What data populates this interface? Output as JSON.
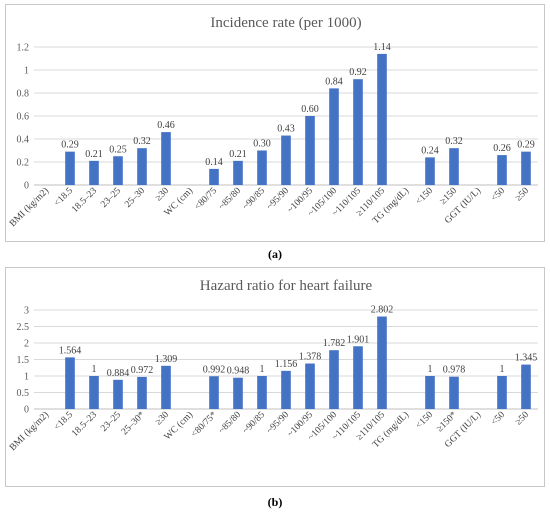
{
  "chart_data": [
    {
      "type": "bar",
      "title": "Incidence rate (per 1000)",
      "caption": "(a)",
      "ylim": [
        0,
        1.2
      ],
      "yticks": [
        "0",
        "0.2",
        "0.4",
        "0.6",
        "0.8",
        "1",
        "1.2"
      ],
      "grid": true,
      "bar_color": "#4472c4",
      "categories": [
        "BMI (kg/m2)",
        "<18.5",
        "18.5–23",
        "23–25",
        "25–30",
        "≥30",
        "WC (cm)",
        "<80/75",
        "~85/80",
        "~90/85",
        "~95/90",
        "~100/95",
        "~105/100",
        "~110/105",
        "≥110/105",
        "TG (mg/dL)",
        "<150",
        "≥150",
        "GGT (IU/L)",
        "<50",
        "≥50"
      ],
      "values": [
        null,
        0.29,
        0.21,
        0.25,
        0.32,
        0.46,
        null,
        0.14,
        0.21,
        0.3,
        0.43,
        0.6,
        0.84,
        0.92,
        1.14,
        null,
        0.24,
        0.32,
        null,
        0.26,
        0.29
      ],
      "labels": [
        "",
        "0.29",
        "0.21",
        "0.25",
        "0.32",
        "0.46",
        "",
        "0.14",
        "0.21",
        "0.30",
        "0.43",
        "0.60",
        "0.84",
        "0.92",
        "1.14",
        "",
        "0.24",
        "0.32",
        "",
        "0.26",
        "0.29"
      ]
    },
    {
      "type": "bar",
      "title": "Hazard ratio for heart failure",
      "caption": "(b)",
      "ylim": [
        0,
        3
      ],
      "yticks": [
        "0",
        "0.5",
        "1",
        "1.5",
        "2",
        "2.5",
        "3"
      ],
      "grid": true,
      "bar_color": "#4472c4",
      "categories": [
        "BMI (kg/m2)",
        "<18.5",
        "18.5–23",
        "23–25",
        "25–30*",
        "≥30",
        "WC (cm)",
        "<80/75*",
        "~85/80",
        "~90/85",
        "~95/90",
        "~100/95",
        "~105/100",
        "~110/105",
        "≥110/105",
        "TG (mg/dL)",
        "<150",
        "≥150*",
        "GGT (IU/L)",
        "<50",
        "≥50"
      ],
      "values": [
        null,
        1.564,
        1,
        0.884,
        0.972,
        1.309,
        null,
        0.992,
        0.948,
        1,
        1.156,
        1.378,
        1.782,
        1.901,
        2.802,
        null,
        1,
        0.978,
        null,
        1,
        1.345
      ],
      "labels": [
        "",
        "1.564",
        "1",
        "0.884",
        "0.972",
        "1.309",
        "",
        "0.992",
        "0.948",
        "1",
        "1.156",
        "1.378",
        "1.782",
        "1.901",
        "2.802",
        "",
        "1",
        "0.978",
        "",
        "1",
        "1.345"
      ]
    }
  ]
}
